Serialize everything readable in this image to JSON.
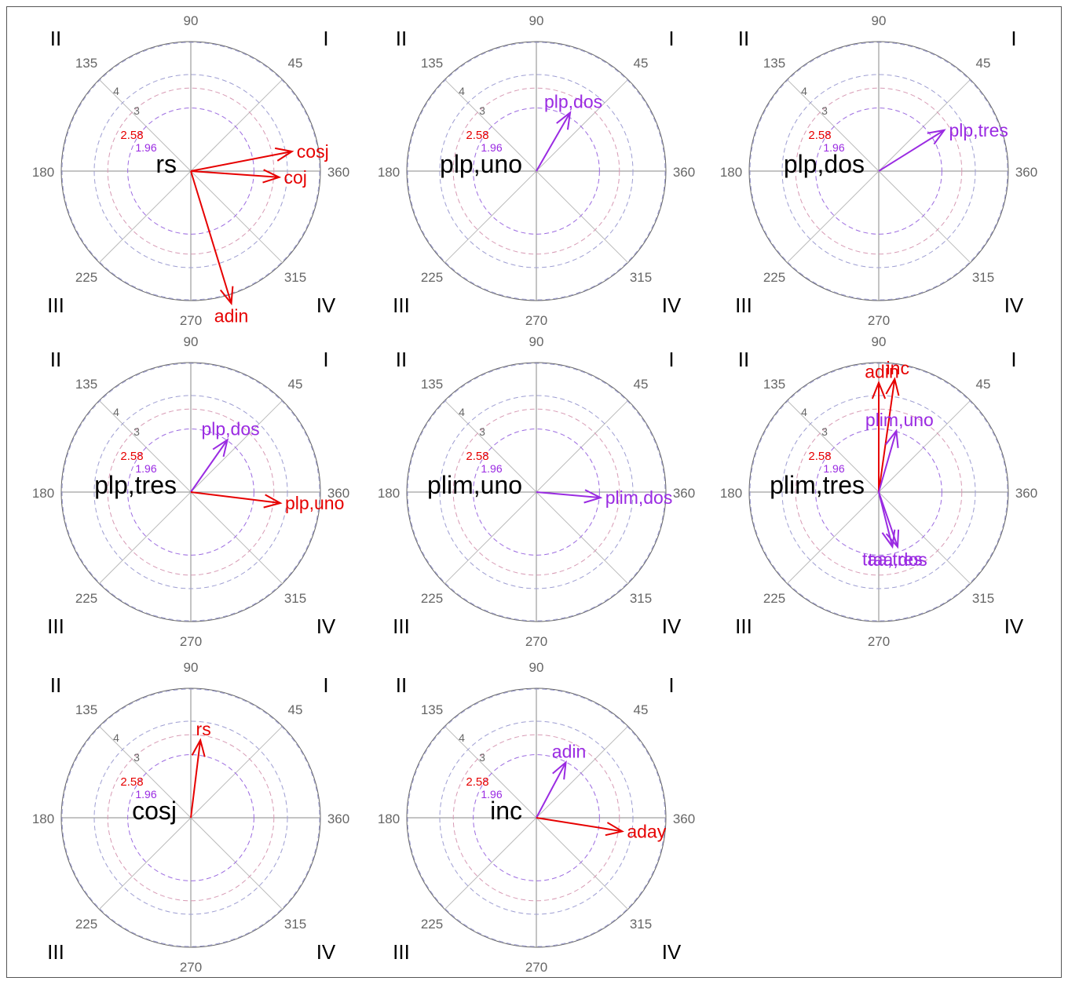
{
  "chart_data": [
    {
      "type": "polar-vector",
      "focal": "rs",
      "angle_ticks": [
        "90",
        "45",
        "360",
        "315",
        "270",
        "225",
        "180",
        "135"
      ],
      "quadrants": [
        "I",
        "II",
        "III",
        "IV"
      ],
      "ring_labels": [
        "4",
        "3",
        "2.58",
        "1.96"
      ],
      "vectors": [
        {
          "name": "cosj",
          "angle": 11,
          "length": 3.2,
          "color": "#e60000"
        },
        {
          "name": "coj",
          "angle": -4,
          "length": 2.75,
          "color": "#e60000"
        },
        {
          "name": "adin",
          "angle": -73,
          "length": 4.3,
          "color": "#e60000"
        }
      ]
    },
    {
      "type": "polar-vector",
      "focal": "plp,uno",
      "angle_ticks": [
        "90",
        "45",
        "360",
        "315",
        "270",
        "225",
        "180",
        "135"
      ],
      "quadrants": [
        "I",
        "II",
        "III",
        "IV"
      ],
      "ring_labels": [
        "4",
        "3",
        "2.58",
        "1.96"
      ],
      "vectors": [
        {
          "name": "plp,dos",
          "angle": 60,
          "length": 2.1,
          "color": "#9a2be2"
        }
      ]
    },
    {
      "type": "polar-vector",
      "focal": "plp,dos",
      "angle_ticks": [
        "90",
        "45",
        "360",
        "315",
        "270",
        "225",
        "180",
        "135"
      ],
      "quadrants": [
        "I",
        "II",
        "III",
        "IV"
      ],
      "ring_labels": [
        "4",
        "3",
        "2.58",
        "1.96"
      ],
      "vectors": [
        {
          "name": "plp,tres",
          "angle": 32,
          "length": 2.4,
          "color": "#9a2be2"
        }
      ]
    },
    {
      "type": "polar-vector",
      "focal": "plp,tres",
      "angle_ticks": [
        "90",
        "45",
        "360",
        "315",
        "270",
        "225",
        "180",
        "135"
      ],
      "quadrants": [
        "I",
        "II",
        "III",
        "IV"
      ],
      "ring_labels": [
        "4",
        "3",
        "2.58",
        "1.96"
      ],
      "vectors": [
        {
          "name": "plp,dos",
          "angle": 55,
          "length": 1.98,
          "color": "#9a2be2"
        },
        {
          "name": "plp,uno",
          "angle": -7,
          "length": 2.8,
          "color": "#e60000"
        }
      ]
    },
    {
      "type": "polar-vector",
      "focal": "plim,uno",
      "angle_ticks": [
        "90",
        "45",
        "360",
        "315",
        "270",
        "225",
        "180",
        "135"
      ],
      "quadrants": [
        "I",
        "II",
        "III",
        "IV"
      ],
      "ring_labels": [
        "4",
        "3",
        "2.58",
        "1.96"
      ],
      "vectors": [
        {
          "name": "plim,dos",
          "angle": -5,
          "length": 2.0,
          "color": "#9a2be2"
        }
      ]
    },
    {
      "type": "polar-vector",
      "focal": "plim,tres",
      "angle_ticks": [
        "90",
        "45",
        "360",
        "315",
        "270",
        "225",
        "180",
        "135"
      ],
      "quadrants": [
        "I",
        "II",
        "III",
        "IV"
      ],
      "ring_labels": [
        "4",
        "3",
        "2.58",
        "1.96"
      ],
      "vectors": [
        {
          "name": "adin",
          "angle": 90,
          "length": 3.4,
          "color": "#e60000"
        },
        {
          "name": "inc",
          "angle": 82,
          "length": 3.55,
          "color": "#e60000"
        },
        {
          "name": "plim,uno",
          "angle": 74,
          "length": 1.98,
          "color": "#9a2be2"
        },
        {
          "name": "taa,tres",
          "angle": -76,
          "length": 1.75,
          "color": "#9a2be2"
        },
        {
          "name": "taa,dos",
          "angle": -71,
          "length": 1.8,
          "color": "#9a2be2"
        }
      ]
    },
    {
      "type": "polar-vector",
      "focal": "cosj",
      "angle_ticks": [
        "90",
        "45",
        "360",
        "315",
        "270",
        "225",
        "180",
        "135"
      ],
      "quadrants": [
        "I",
        "II",
        "III",
        "IV"
      ],
      "ring_labels": [
        "4",
        "3",
        "2.58",
        "1.96"
      ],
      "vectors": [
        {
          "name": "rs",
          "angle": 83,
          "length": 2.43,
          "color": "#e60000"
        }
      ]
    },
    {
      "type": "polar-vector",
      "focal": "inc",
      "angle_ticks": [
        "90",
        "45",
        "360",
        "315",
        "270",
        "225",
        "180",
        "135"
      ],
      "quadrants": [
        "I",
        "II",
        "III",
        "IV"
      ],
      "ring_labels": [
        "4",
        "3",
        "2.58",
        "1.96"
      ],
      "vectors": [
        {
          "name": "adin",
          "angle": 62,
          "length": 1.95,
          "color": "#9a2be2"
        },
        {
          "name": "aday",
          "angle": -9,
          "length": 2.7,
          "color": "#e60000"
        }
      ]
    }
  ]
}
